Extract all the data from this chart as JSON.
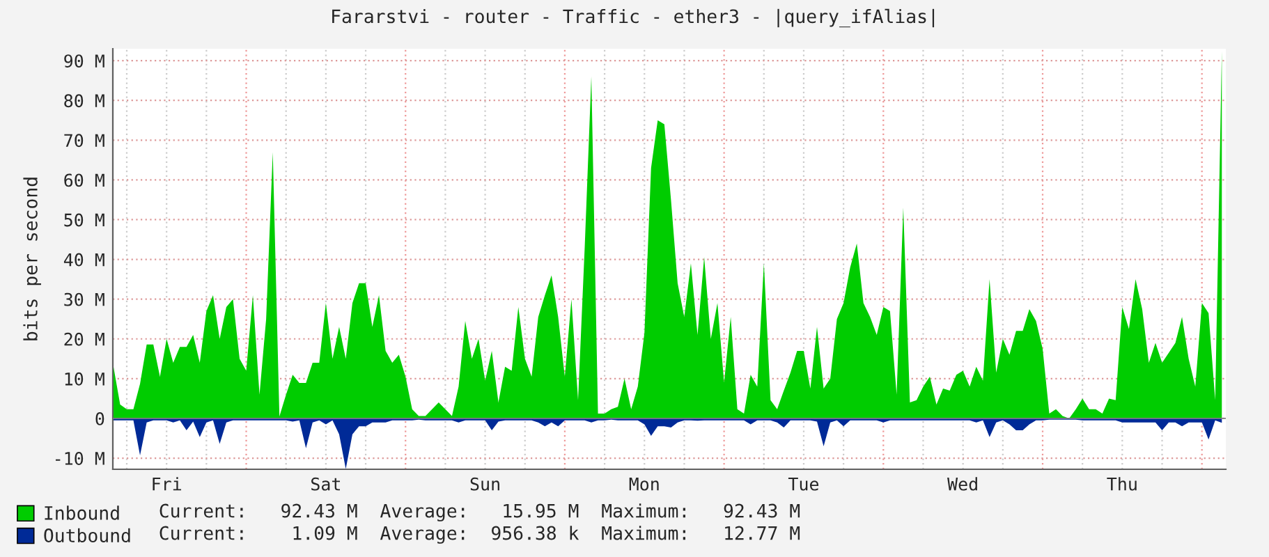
{
  "chart_data": {
    "type": "area",
    "title": "Fararstvi - router - Traffic - ether3 - |query_ifAlias|",
    "ylabel": "bits per second",
    "categories": [
      null,
      null,
      null,
      null,
      null,
      null,
      null,
      null,
      "Fri",
      null,
      null,
      null,
      null,
      null,
      null,
      null,
      null,
      null,
      null,
      null,
      null,
      null,
      null,
      null,
      null,
      null,
      null,
      null,
      null,
      null,
      null,
      null,
      "Sat",
      null,
      null,
      null,
      null,
      null,
      null,
      null,
      null,
      null,
      null,
      null,
      null,
      null,
      null,
      null,
      null,
      null,
      null,
      null,
      null,
      null,
      null,
      null,
      "Sun",
      null,
      null,
      null,
      null,
      null,
      null,
      null,
      null,
      null,
      null,
      null,
      null,
      null,
      null,
      null,
      null,
      null,
      null,
      null,
      null,
      null,
      null,
      null,
      "Mon",
      null,
      null,
      null,
      null,
      null,
      null,
      null,
      null,
      null,
      null,
      null,
      null,
      null,
      null,
      null,
      null,
      null,
      null,
      null,
      null,
      null,
      null,
      null,
      "Tue",
      null,
      null,
      null,
      null,
      null,
      null,
      null,
      null,
      null,
      null,
      null,
      null,
      null,
      null,
      null,
      null,
      null,
      null,
      null,
      null,
      null,
      null,
      null,
      "Wed",
      null,
      null,
      null,
      null,
      null,
      null,
      null,
      null,
      null,
      null,
      null,
      null,
      null,
      null,
      null,
      null,
      null,
      null,
      null,
      null,
      null,
      null,
      null,
      "Thu",
      null,
      null,
      null,
      null,
      null,
      null,
      null,
      null,
      null,
      null,
      null,
      null,
      null,
      null,
      null
    ],
    "ylim": [
      -12.8,
      93
    ],
    "yticks": [
      {
        "value": -10,
        "label": "-10 M"
      },
      {
        "value": 0,
        "label": "0"
      },
      {
        "value": 10,
        "label": "10 M"
      },
      {
        "value": 20,
        "label": "20 M"
      },
      {
        "value": 30,
        "label": "30 M"
      },
      {
        "value": 40,
        "label": "40 M"
      },
      {
        "value": 50,
        "label": "50 M"
      },
      {
        "value": 60,
        "label": "60 M"
      },
      {
        "value": 70,
        "label": "70 M"
      },
      {
        "value": 80,
        "label": "80 M"
      },
      {
        "value": 90,
        "label": "90 M"
      }
    ],
    "grid": true,
    "legend": "bottom",
    "annotations": [
      "Current:   92.43 M  Average:   15.95 M  Maximum:   92.43 M",
      "Current:    1.09 M  Average:  956.38 k  Maximum:   12.77 M"
    ],
    "series": [
      {
        "name": "Inbound",
        "color": "#00cc00",
        "values": [
          13,
          3.5,
          2.3,
          2.3,
          8.7,
          18.6,
          18.6,
          10.5,
          20,
          14,
          18,
          18,
          21,
          14,
          27,
          31,
          20,
          28,
          30,
          15,
          12,
          31,
          6,
          25,
          67,
          0.5,
          6,
          11,
          8.9,
          8.9,
          14,
          14,
          29,
          15,
          23,
          15,
          29,
          34,
          34,
          23,
          31,
          17,
          14,
          16,
          10.5,
          2.3,
          0.6,
          0.6,
          2.3,
          4,
          2.3,
          0.6,
          8,
          24.5,
          15,
          20,
          9.5,
          17,
          4,
          13,
          12,
          28,
          15,
          10.5,
          25.5,
          31,
          36,
          25.5,
          10.5,
          30,
          4.6,
          43,
          86,
          1.2,
          1.2,
          2.3,
          2.9,
          10,
          2.3,
          8,
          21.5,
          63,
          75,
          74,
          55,
          34,
          25.5,
          39,
          21,
          40.6,
          20,
          29,
          9,
          25.5,
          2.3,
          1.2,
          11,
          8,
          39,
          4.6,
          2.3,
          7,
          11.5,
          17,
          17,
          7.5,
          23,
          7.5,
          10,
          25,
          29,
          38,
          44,
          29,
          25.5,
          21,
          28,
          27,
          6,
          53,
          4,
          4.6,
          8,
          10.5,
          3.5,
          7.5,
          7,
          11,
          12,
          8,
          13,
          9.5,
          35,
          11.5,
          20,
          16,
          22,
          22,
          27.5,
          24.5,
          17.5,
          1.2,
          2.3,
          0.6,
          0,
          2.3,
          5,
          2.3,
          2.3,
          1.2,
          5,
          4.6,
          28,
          22.5,
          35,
          27.5,
          14,
          19,
          14,
          16.5,
          19,
          25.5,
          15,
          8,
          29,
          26.5,
          4.6,
          92.4
        ]
      },
      {
        "name": "Outbound",
        "color": "#002a97",
        "values": [
          -0.5,
          -0.5,
          -0.5,
          -0.5,
          -9.3,
          -1,
          -0.5,
          -0.5,
          -0.5,
          -1,
          -0.5,
          -3,
          -0.8,
          -4.7,
          -1,
          -0.5,
          -6.4,
          -1,
          -0.5,
          -0.5,
          -0.5,
          -0.5,
          -0.5,
          -0.5,
          -0.5,
          -0.5,
          -0.5,
          -0.8,
          -0.5,
          -7.5,
          -1,
          -0.5,
          -1.5,
          -0.5,
          -4,
          -12.7,
          -4,
          -2,
          -2,
          -1,
          -1,
          -1,
          -0.5,
          -0.5,
          -0.5,
          -0.5,
          -0.3,
          -0.5,
          -0.5,
          -0.5,
          -0.5,
          -0.5,
          -1,
          -0.5,
          -0.5,
          -0.5,
          -0.5,
          -3,
          -0.8,
          -0.5,
          -0.5,
          -0.5,
          -0.5,
          -0.5,
          -1,
          -2,
          -1,
          -2,
          -0.5,
          -0.5,
          -0.5,
          -0.5,
          -1,
          -0.5,
          -0.5,
          -0.3,
          -0.5,
          -0.5,
          -0.5,
          -0.5,
          -1.5,
          -4.4,
          -2,
          -2,
          -2.3,
          -1,
          -0.5,
          -0.5,
          -0.6,
          -0.5,
          -0.5,
          -0.5,
          -0.5,
          -0.5,
          -0.5,
          -0.5,
          -1.5,
          -0.5,
          -0.5,
          -0.5,
          -1,
          -2.3,
          -0.5,
          -0.5,
          -0.5,
          -0.5,
          -0.8,
          -7,
          -1,
          -0.5,
          -2,
          -0.5,
          -0.5,
          -0.5,
          -0.5,
          -0.5,
          -1,
          -0.5,
          -0.5,
          -0.5,
          -0.5,
          -0.5,
          -0.5,
          -0.5,
          -0.5,
          -0.5,
          -0.5,
          -0.5,
          -0.5,
          -0.5,
          -1,
          -0.5,
          -4.7,
          -1,
          -0.5,
          -1.5,
          -3,
          -3,
          -1.5,
          -0.5,
          -0.5,
          -0.3,
          -0.3,
          -0.3,
          -0.3,
          -0.3,
          -0.5,
          -0.5,
          -0.5,
          -0.5,
          -0.5,
          -0.5,
          -1,
          -1,
          -1,
          -1,
          -1,
          -1,
          -3,
          -1,
          -1,
          -2,
          -1,
          -1,
          -1,
          -5.3,
          -0.5,
          -1.1
        ]
      }
    ]
  }
}
